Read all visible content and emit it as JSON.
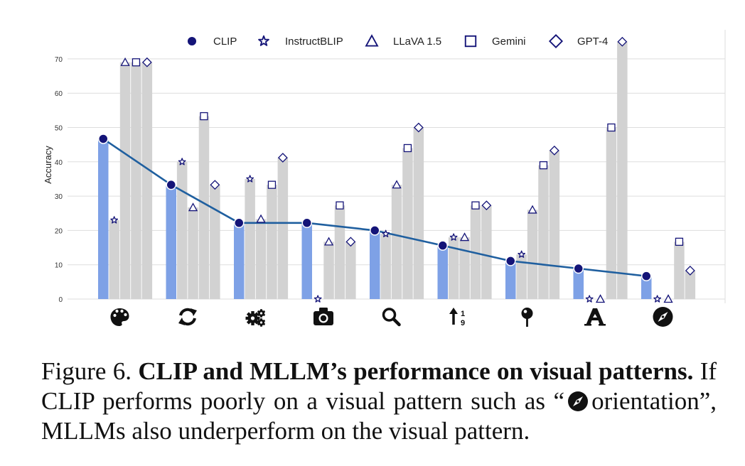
{
  "chart_data": {
    "type": "bar",
    "title": "",
    "xlabel": "",
    "ylabel": "Accuracy",
    "ylim": [
      0,
      76
    ],
    "yticks": [
      0,
      10,
      20,
      30,
      40,
      50,
      60,
      70
    ],
    "grid": true,
    "legend_position": "top",
    "categories": [
      "color-appearance",
      "state-condition",
      "quantity-count",
      "viewpoint-perspective",
      "presence-features",
      "structural-characters",
      "positional-context",
      "text",
      "orientation"
    ],
    "category_icons": [
      "palette-icon",
      "sync-icon",
      "cogs-icon",
      "camera-icon",
      "search-icon",
      "sort-icon",
      "pushpin-icon",
      "font-icon",
      "compass-icon"
    ],
    "series": [
      {
        "name": "CLIP",
        "marker": "circle",
        "values": [
          46.7,
          33.3,
          22.2,
          22.2,
          20.0,
          15.6,
          11.1,
          8.9,
          6.7
        ]
      },
      {
        "name": "InstructBLIP",
        "marker": "star",
        "values": [
          23.0,
          40.0,
          35.0,
          0.0,
          19.0,
          18.0,
          13.0,
          0.0,
          0.0
        ]
      },
      {
        "name": "LLaVA 1.5",
        "marker": "triangle",
        "values": [
          69.0,
          26.7,
          23.3,
          16.7,
          33.3,
          18.0,
          26.0,
          0.0,
          0.0
        ]
      },
      {
        "name": "Gemini",
        "marker": "square",
        "values": [
          69.0,
          53.3,
          33.3,
          27.3,
          44.0,
          27.3,
          39.0,
          50.0,
          16.7
        ]
      },
      {
        "name": "GPT-4",
        "marker": "diamond",
        "values": [
          69.0,
          33.3,
          41.2,
          16.7,
          50.0,
          27.3,
          43.3,
          75.0,
          8.3
        ]
      }
    ],
    "colors": {
      "clip_bar": "#7ea1e6",
      "mllm_bar": "#d2d2d2",
      "trend_line": "#1f5f9f",
      "marker": "#141478",
      "grid": "#dddddd"
    }
  },
  "caption": {
    "label": "Figure 6.",
    "title": "CLIP and MLLM’s performance on visual patterns.",
    "text_before": "If CLIP performs poorly on a visual pattern such as “",
    "text_after": "orientation”, MLLMs also underperform on the visual pattern."
  }
}
